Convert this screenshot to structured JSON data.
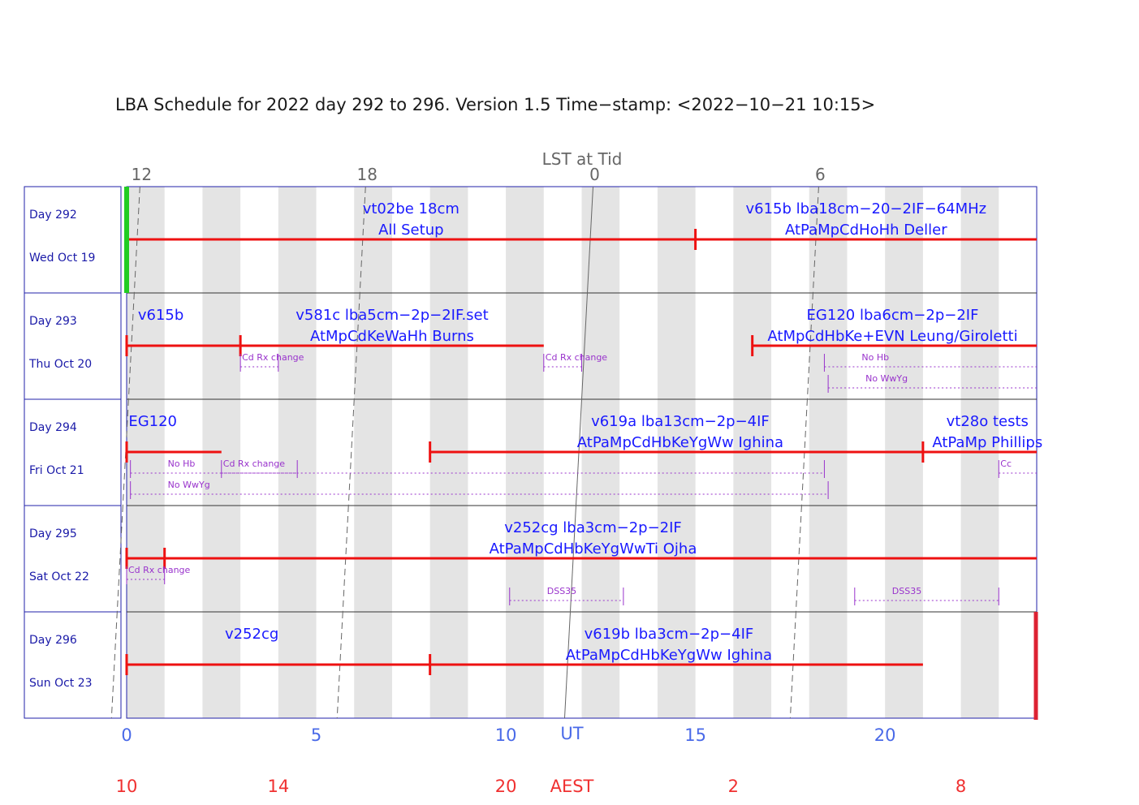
{
  "chart_data": {
    "type": "schedule",
    "title": "LBA Schedule for 2022 day 292 to 296. Version 1.5 Time−stamp: <2022−10−21 10:15>",
    "x_axis": {
      "label": "UT",
      "range_hours": [
        0,
        24
      ],
      "ticks": [
        {
          "value": 0,
          "label": "0"
        },
        {
          "value": 5,
          "label": "5"
        },
        {
          "value": 10,
          "label": "10"
        },
        {
          "value": 15,
          "label": "15"
        },
        {
          "value": 20,
          "label": "20"
        }
      ]
    },
    "lst_axis": {
      "label": "LST at Tid",
      "ticks": [
        {
          "label": "12",
          "ut": 0.35
        },
        {
          "label": "18",
          "ut": 6.3
        },
        {
          "label": "0",
          "ut": 12.3
        },
        {
          "label": "6",
          "ut": 18.25
        }
      ]
    },
    "aest_axis": {
      "label": "AEST",
      "label_ut": 12,
      "ticks": [
        {
          "label": "10",
          "ut": 0
        },
        {
          "label": "14",
          "ut": 4
        },
        {
          "label": "20",
          "ut": 10
        },
        {
          "label": "2",
          "ut": 16
        },
        {
          "label": "8",
          "ut": 22
        }
      ]
    },
    "days": [
      {
        "day": "Day 292",
        "date": "Wed Oct 19",
        "lst_line": [
          0.35,
          0.2
        ],
        "bars": [
          {
            "start": 0,
            "end": 24,
            "ticks": [
              15
            ]
          }
        ],
        "labels": [
          {
            "ut": 7.5,
            "line1": "vt02be 18cm",
            "line2": "All Setup"
          },
          {
            "ut": 19.5,
            "line1": "v615b lba18cm−20−2IF−64MHz",
            "line2": "AtPaMpCdHoHh Deller"
          }
        ],
        "notes": []
      },
      {
        "day": "Day 293",
        "date": "Thu Oct 20",
        "lst_line": [
          0.2,
          0.05
        ],
        "bars": [
          {
            "start": 0,
            "end": 3,
            "ticks": []
          },
          {
            "start": 3,
            "end": 11,
            "ticks": []
          },
          {
            "start": 16.5,
            "end": 24,
            "ticks": []
          }
        ],
        "labels": [
          {
            "ut": 0.9,
            "line1": "v615b",
            "line2": ""
          },
          {
            "ut": 7,
            "line1": "v581c lba5cm−2p−2IF.set",
            "line2": "AtMpCdKeWaHh Burns"
          },
          {
            "ut": 20.2,
            "line1": "EG120 lba6cm−2p−2IF",
            "line2": "AtMpCdHbKe+EVN Leung/Giroletti"
          }
        ],
        "notes": [
          {
            "start": 3,
            "end": 4,
            "row": 0,
            "text": "Cd Rx change"
          },
          {
            "start": 11,
            "end": 12,
            "row": 0,
            "text": "Cd Rx change"
          },
          {
            "start": 18.4,
            "end": 24,
            "row": 0,
            "text": "No Hb"
          },
          {
            "start": 18.5,
            "end": 24,
            "row": 1,
            "text": "No WwYg"
          }
        ]
      },
      {
        "day": "Day 294",
        "date": "Fri Oct 21",
        "lst_line": [
          0.05,
          -0.1
        ],
        "bars": [
          {
            "start": 0,
            "end": 2.5,
            "ticks": []
          },
          {
            "start": 8,
            "end": 24,
            "ticks": [
              21
            ]
          }
        ],
        "labels": [
          {
            "ut": 0.05,
            "line1": "EG120",
            "line2": "",
            "anchor": "start"
          },
          {
            "ut": 14.6,
            "line1": "v619a lba13cm−2p−4IF",
            "line2": "AtPaMpCdHbKeYgWw Ighina"
          },
          {
            "ut": 22.7,
            "line1": "vt28o tests",
            "line2": "AtPaMp Phillips"
          }
        ],
        "notes": [
          {
            "start": 0.1,
            "end": 18.4,
            "row": 0,
            "text": "No Hb"
          },
          {
            "start": 2.5,
            "end": 4.5,
            "row": 0,
            "text": "Cd Rx change"
          },
          {
            "start": 23,
            "end": 24,
            "row": 0,
            "text": "Cc"
          },
          {
            "start": 0.1,
            "end": 18.5,
            "row": 1,
            "text": "No WwYg"
          }
        ]
      },
      {
        "day": "Day 295",
        "date": "Sat Oct 22",
        "lst_line": [
          -0.1,
          -0.25
        ],
        "bars": [
          {
            "start": 0,
            "end": 1,
            "ticks": []
          },
          {
            "start": 1,
            "end": 24,
            "ticks": []
          }
        ],
        "labels": [
          {
            "ut": 12.3,
            "line1": "v252cg lba3cm−2p−2IF",
            "line2": "AtPaMpCdHbKeYgWwTi Ojha"
          }
        ],
        "notes": [
          {
            "start": 0,
            "end": 1,
            "row": 0,
            "text": "Cd Rx change"
          },
          {
            "start": 10.1,
            "end": 13.1,
            "row": 1,
            "text": "DSS35"
          },
          {
            "start": 19.2,
            "end": 23,
            "row": 1,
            "text": "DSS35"
          }
        ]
      },
      {
        "day": "Day 296",
        "date": "Sun Oct 23",
        "lst_line": [
          -0.25,
          -0.4
        ],
        "bars": [
          {
            "start": 0,
            "end": 8,
            "ticks": []
          },
          {
            "start": 8,
            "end": 21,
            "ticks": []
          }
        ],
        "labels": [
          {
            "ut": 3.3,
            "line1": "v252cg",
            "line2": ""
          },
          {
            "ut": 14.3,
            "line1": "v619b lba3cm−2p−4IF",
            "line2": "AtPaMpCdHbKeYgWw Ighina"
          }
        ],
        "notes": []
      }
    ],
    "now_marker": {
      "day_index": 0,
      "ut": 0,
      "color": "#22cc22"
    },
    "end_marker": {
      "day_index": 4,
      "ut": 24,
      "color": "#dd2233"
    },
    "colors": {
      "frame": "#2222aa",
      "bar": "#ee1111",
      "label": "#1a1aff",
      "note": "#9933cc",
      "shade": "#e4e4e4",
      "lst": "#666666",
      "ut_axis": "#4a6ae8",
      "aest_axis": "#f03030"
    }
  }
}
